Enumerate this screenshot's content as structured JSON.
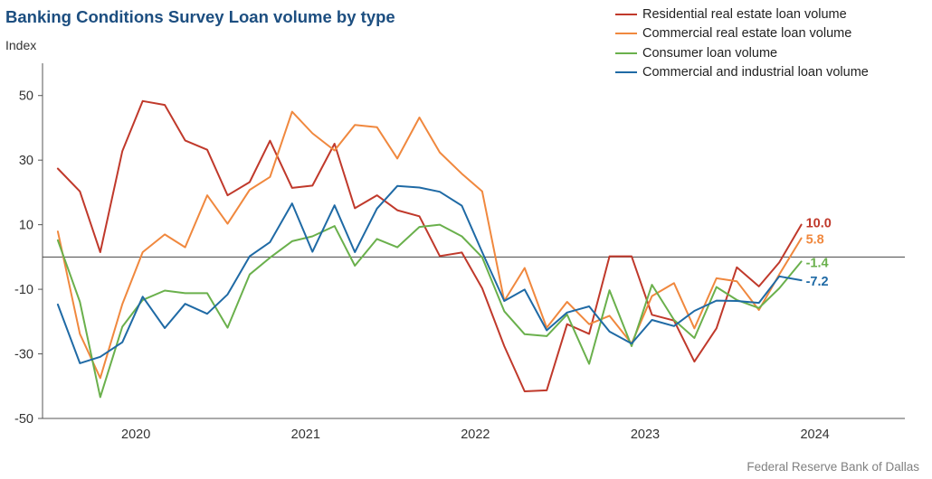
{
  "title": "Banking Conditions Survey Loan volume by type",
  "source": "Federal Reserve Bank of Dallas",
  "chart_data": {
    "type": "line",
    "ylabel": "Index",
    "ylim": [
      -50,
      60
    ],
    "yticks": [
      50,
      30,
      10,
      -10,
      -30,
      -50
    ],
    "ytick_labels": [
      "50",
      "30",
      "10",
      "-10",
      "-30",
      "-50"
    ],
    "x_range": [
      2019.45,
      2024.53
    ],
    "xtick_labels": [
      {
        "label": "2020",
        "x": 2020
      },
      {
        "label": "2021",
        "x": 2021
      },
      {
        "label": "2022",
        "x": 2022
      },
      {
        "label": "2023",
        "x": 2023
      },
      {
        "label": "2024",
        "x": 2024
      }
    ],
    "zero_line": 0,
    "grid": false,
    "legend_position": "top-right",
    "x": [
      2019.54,
      2019.67,
      2019.79,
      2019.92,
      2020.04,
      2020.17,
      2020.29,
      2020.42,
      2020.54,
      2020.67,
      2020.79,
      2020.92,
      2021.04,
      2021.17,
      2021.29,
      2021.42,
      2021.54,
      2021.67,
      2021.79,
      2021.92,
      2022.04,
      2022.17,
      2022.29,
      2022.42,
      2022.54,
      2022.67,
      2022.79,
      2022.92,
      2023.04,
      2023.17,
      2023.29,
      2023.42,
      2023.54,
      2023.67,
      2023.79,
      2023.92
    ],
    "series": [
      {
        "name": "Residential real estate loan volume",
        "color": "#c0392b",
        "values": [
          27.4,
          20.3,
          1.5,
          32.8,
          48.3,
          47.1,
          36.1,
          33.2,
          19.1,
          23.2,
          36.0,
          21.4,
          22.1,
          35.1,
          15.1,
          19.1,
          14.5,
          12.6,
          0.3,
          1.4,
          -9.7,
          -27.6,
          -41.6,
          -41.3,
          -20.8,
          -23.8,
          0.2,
          0.2,
          -17.9,
          -19.7,
          -32.4,
          -22.1,
          -3.2,
          -9.1,
          -1.7,
          10.0
        ],
        "end_label": "10.0"
      },
      {
        "name": "Commercial real estate loan volume",
        "color": "#f0883e",
        "values": [
          7.9,
          -23.8,
          -37.5,
          -14.6,
          1.5,
          7.0,
          3.0,
          19.1,
          10.3,
          20.8,
          24.8,
          45.0,
          38.3,
          33.0,
          40.9,
          40.2,
          30.5,
          43.2,
          32.4,
          25.8,
          20.3,
          -13.6,
          -3.4,
          -21.9,
          -13.9,
          -20.8,
          -18.2,
          -26.8,
          -12.1,
          -8.1,
          -22.1,
          -6.6,
          -7.5,
          -16.4,
          -5.4,
          5.8
        ],
        "end_label": "5.8"
      },
      {
        "name": "Consumer loan volume",
        "color": "#6ab04c",
        "values": [
          5.2,
          -13.9,
          -43.4,
          -21.6,
          -13.3,
          -10.4,
          -11.2,
          -11.2,
          -21.9,
          -5.4,
          -0.2,
          4.9,
          6.4,
          9.6,
          -2.7,
          5.6,
          3.0,
          9.3,
          10.0,
          6.4,
          -0.1,
          -16.8,
          -23.9,
          -24.5,
          -17.8,
          -33.1,
          -10.3,
          -27.6,
          -8.6,
          -19.5,
          -25.1,
          -9.3,
          -13.3,
          -15.8,
          -9.7,
          -1.4
        ],
        "end_label": "-1.4"
      },
      {
        "name": "Commercial and industrial loan volume",
        "color": "#1f6aa5",
        "values": [
          -14.7,
          -32.9,
          -30.9,
          -26.4,
          -12.3,
          -22.0,
          -14.5,
          -17.6,
          -11.6,
          0.2,
          4.6,
          16.6,
          1.6,
          16.0,
          1.5,
          15.0,
          22.0,
          21.5,
          20.2,
          15.9,
          1.5,
          -13.6,
          -10.1,
          -22.7,
          -17.2,
          -15.3,
          -23.1,
          -26.8,
          -19.5,
          -21.4,
          -16.7,
          -13.5,
          -13.6,
          -14.2,
          -6.0,
          -7.2
        ],
        "end_label": "-7.2"
      }
    ]
  }
}
